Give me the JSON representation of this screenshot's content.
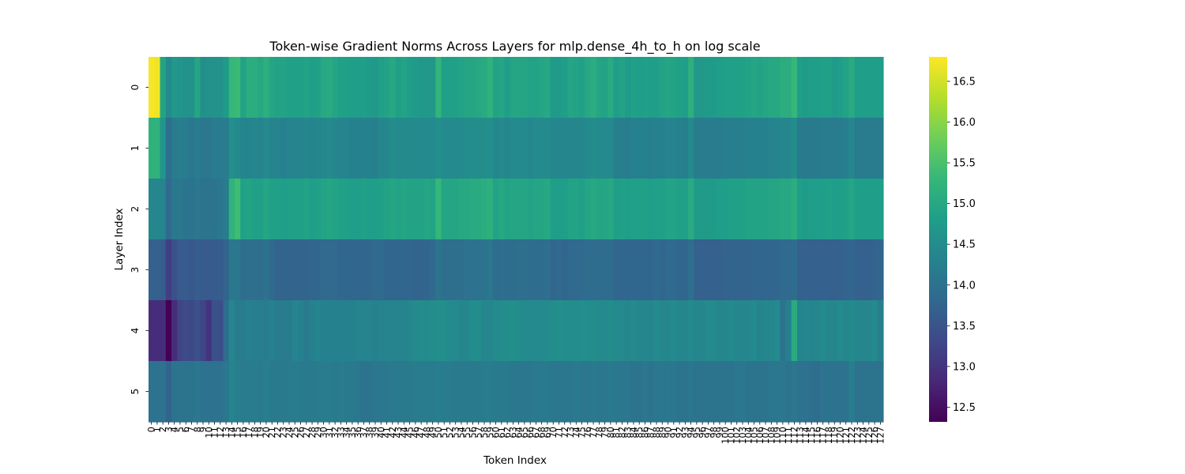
{
  "chart_data": {
    "type": "heatmap",
    "title": "Token-wise Gradient Norms Across Layers for mlp.dense_4h_to_h on log scale",
    "xlabel": "Token Index",
    "ylabel": "Layer Index",
    "x_ticks": "0-127",
    "y_categories": [
      "0",
      "1",
      "2",
      "3",
      "4",
      "5"
    ],
    "colormap": "viridis",
    "colorbar": {
      "min": 12.32,
      "max": 16.8,
      "ticks": [
        "12.5",
        "13.0",
        "13.5",
        "14.0",
        "14.5",
        "15.0",
        "15.5",
        "16.0",
        "16.5"
      ]
    },
    "rows": [
      {
        "layer": "0",
        "values": [
          16.75,
          16.7,
          14.9,
          14.45,
          14.7,
          14.65,
          14.6,
          14.6,
          14.95,
          14.55,
          14.6,
          14.6,
          14.6,
          14.75,
          15.3,
          15.35,
          14.9,
          15.1,
          15.1,
          15.0,
          15.15,
          14.95,
          14.9,
          14.9,
          14.85,
          14.85,
          14.85,
          14.9,
          14.8,
          14.85,
          15.0,
          15.05,
          14.95,
          14.85,
          14.85,
          14.8,
          14.8,
          14.8,
          14.75,
          14.7,
          14.85,
          14.9,
          15.0,
          14.85,
          14.9,
          14.8,
          14.75,
          14.7,
          14.7,
          14.7,
          15.25,
          14.85,
          14.85,
          14.85,
          14.9,
          14.95,
          14.95,
          15.0,
          15.05,
          15.2,
          14.9,
          14.95,
          14.8,
          14.95,
          14.95,
          14.95,
          14.9,
          14.9,
          14.95,
          15.0,
          14.75,
          14.75,
          14.8,
          14.95,
          14.9,
          14.85,
          15.0,
          15.1,
          14.95,
          14.9,
          15.05,
          14.8,
          14.9,
          14.75,
          14.85,
          14.8,
          14.85,
          14.8,
          14.8,
          14.9,
          14.95,
          14.9,
          14.85,
          14.8,
          15.15,
          14.7,
          14.7,
          14.75,
          14.75,
          14.8,
          14.85,
          14.85,
          14.85,
          14.85,
          14.9,
          14.95,
          14.9,
          14.95,
          15.0,
          15.0,
          15.1,
          15.1,
          15.3,
          14.8,
          14.75,
          14.8,
          14.8,
          14.85,
          14.85,
          14.75,
          14.8,
          14.9,
          15.05,
          14.8,
          14.8,
          14.8,
          14.8,
          14.8
        ]
      },
      {
        "layer": "1",
        "values": [
          15.2,
          15.2,
          14.65,
          13.95,
          14.2,
          14.25,
          14.2,
          14.1,
          14.2,
          14.1,
          14.1,
          14.2,
          14.2,
          14.2,
          14.55,
          14.45,
          14.35,
          14.35,
          14.4,
          14.35,
          14.45,
          14.35,
          14.35,
          14.3,
          14.35,
          14.35,
          14.35,
          14.4,
          14.35,
          14.4,
          14.4,
          14.45,
          14.4,
          14.35,
          14.35,
          14.3,
          14.3,
          14.3,
          14.3,
          14.25,
          14.4,
          14.4,
          14.5,
          14.45,
          14.45,
          14.45,
          14.45,
          14.45,
          14.45,
          14.45,
          14.55,
          14.45,
          14.45,
          14.45,
          14.45,
          14.5,
          14.5,
          14.5,
          14.5,
          14.55,
          14.4,
          14.45,
          14.4,
          14.45,
          14.45,
          14.45,
          14.4,
          14.45,
          14.45,
          14.45,
          14.4,
          14.4,
          14.4,
          14.4,
          14.4,
          14.4,
          14.45,
          14.5,
          14.45,
          14.45,
          14.45,
          14.25,
          14.25,
          14.2,
          14.3,
          14.3,
          14.3,
          14.25,
          14.3,
          14.3,
          14.35,
          14.35,
          14.3,
          14.25,
          14.45,
          14.2,
          14.2,
          14.2,
          14.2,
          14.2,
          14.25,
          14.25,
          14.25,
          14.25,
          14.3,
          14.3,
          14.3,
          14.3,
          14.35,
          14.35,
          14.4,
          14.4,
          14.5,
          14.15,
          14.15,
          14.15,
          14.15,
          14.2,
          14.2,
          14.2,
          14.2,
          14.25,
          14.4,
          14.2,
          14.2,
          14.2,
          14.2,
          14.2
        ]
      },
      {
        "layer": "2",
        "values": [
          14.4,
          14.4,
          14.35,
          13.85,
          14.1,
          14.1,
          14.05,
          14.05,
          14.1,
          14.05,
          14.05,
          14.05,
          14.1,
          14.2,
          15.2,
          15.4,
          14.85,
          14.9,
          14.85,
          14.85,
          14.95,
          14.85,
          14.85,
          14.8,
          14.85,
          14.85,
          14.85,
          14.9,
          14.8,
          14.85,
          14.9,
          14.95,
          14.9,
          14.85,
          14.85,
          14.8,
          14.8,
          14.85,
          14.8,
          14.8,
          14.85,
          14.9,
          14.95,
          14.9,
          14.95,
          14.9,
          14.9,
          14.9,
          14.95,
          14.9,
          15.3,
          14.95,
          14.95,
          14.95,
          15.0,
          15.0,
          15.05,
          15.05,
          15.1,
          15.15,
          14.9,
          15.0,
          14.9,
          14.95,
          14.95,
          14.95,
          14.9,
          14.95,
          14.95,
          15.0,
          14.8,
          14.8,
          14.8,
          14.9,
          14.9,
          14.85,
          14.95,
          15.0,
          14.95,
          14.95,
          15.0,
          14.8,
          14.85,
          14.8,
          14.85,
          14.85,
          14.85,
          14.8,
          14.85,
          14.85,
          14.9,
          14.9,
          14.85,
          14.85,
          15.05,
          14.75,
          14.75,
          14.75,
          14.75,
          14.8,
          14.8,
          14.85,
          14.85,
          14.85,
          14.9,
          14.9,
          14.9,
          14.9,
          14.95,
          14.95,
          15.0,
          15.0,
          15.1,
          14.8,
          14.75,
          14.8,
          14.8,
          14.8,
          14.85,
          14.8,
          14.8,
          14.85,
          14.95,
          14.8,
          14.8,
          14.8,
          14.8,
          14.8
        ]
      },
      {
        "layer": "3",
        "values": [
          13.7,
          13.7,
          13.65,
          13.15,
          13.45,
          13.6,
          13.6,
          13.55,
          13.65,
          13.6,
          13.6,
          13.6,
          13.65,
          13.75,
          14.1,
          14.1,
          13.9,
          13.95,
          13.95,
          13.9,
          14.0,
          13.85,
          13.75,
          13.75,
          13.75,
          13.75,
          13.75,
          13.75,
          13.8,
          13.8,
          13.85,
          13.85,
          13.85,
          13.8,
          13.8,
          13.8,
          13.8,
          13.8,
          13.8,
          13.85,
          13.85,
          13.8,
          13.8,
          13.8,
          13.8,
          13.8,
          13.75,
          13.75,
          13.8,
          13.85,
          14.05,
          13.95,
          13.95,
          13.95,
          13.95,
          14.0,
          14.0,
          14.0,
          14.05,
          14.1,
          13.9,
          13.95,
          13.9,
          13.9,
          13.95,
          13.95,
          13.9,
          13.9,
          13.9,
          13.95,
          13.8,
          13.85,
          13.8,
          13.85,
          13.85,
          13.85,
          13.9,
          13.9,
          13.9,
          13.9,
          13.9,
          13.8,
          13.8,
          13.8,
          13.8,
          13.8,
          13.8,
          13.8,
          13.85,
          13.8,
          13.85,
          13.85,
          13.8,
          13.8,
          13.95,
          13.7,
          13.7,
          13.7,
          13.7,
          13.7,
          13.75,
          13.75,
          13.75,
          13.75,
          13.75,
          13.8,
          13.8,
          13.8,
          13.8,
          13.8,
          13.85,
          13.85,
          13.9,
          13.7,
          13.7,
          13.7,
          13.7,
          13.7,
          13.7,
          13.7,
          13.7,
          13.75,
          13.8,
          13.7,
          13.7,
          13.7,
          13.75,
          13.8
        ]
      },
      {
        "layer": "4",
        "values": [
          12.9,
          12.9,
          12.9,
          12.32,
          12.9,
          13.25,
          13.35,
          13.3,
          13.45,
          13.25,
          13.0,
          13.45,
          13.4,
          13.9,
          14.4,
          14.2,
          14.2,
          14.3,
          14.25,
          14.25,
          14.2,
          14.3,
          14.2,
          14.2,
          14.2,
          14.35,
          14.3,
          14.15,
          14.3,
          14.35,
          14.3,
          14.3,
          14.3,
          14.3,
          14.3,
          14.3,
          14.35,
          14.35,
          14.35,
          14.3,
          14.35,
          14.35,
          14.35,
          14.35,
          14.35,
          14.4,
          14.45,
          14.5,
          14.45,
          14.5,
          14.55,
          14.55,
          14.45,
          14.45,
          14.4,
          14.4,
          14.5,
          14.5,
          14.4,
          14.4,
          14.45,
          14.5,
          14.5,
          14.55,
          14.5,
          14.45,
          14.45,
          14.45,
          14.45,
          14.45,
          14.5,
          14.55,
          14.5,
          14.5,
          14.5,
          14.55,
          14.5,
          14.5,
          14.45,
          14.45,
          14.5,
          14.45,
          14.45,
          14.4,
          14.45,
          14.4,
          14.4,
          14.4,
          14.45,
          14.4,
          14.4,
          14.45,
          14.4,
          14.4,
          14.45,
          14.4,
          14.4,
          14.45,
          14.45,
          14.4,
          14.4,
          14.45,
          14.4,
          14.4,
          14.4,
          14.45,
          14.35,
          14.4,
          14.4,
          14.45,
          14.05,
          14.25,
          15.05,
          14.35,
          14.4,
          14.35,
          14.4,
          14.45,
          14.4,
          14.4,
          14.45,
          14.4,
          14.45,
          14.4,
          14.4,
          14.4,
          14.45,
          14.25
        ]
      },
      {
        "layer": "5",
        "values": [
          14.0,
          14.0,
          14.0,
          13.75,
          14.05,
          14.05,
          14.05,
          14.05,
          14.1,
          14.0,
          14.0,
          14.0,
          14.0,
          14.1,
          14.35,
          14.25,
          14.2,
          14.2,
          14.2,
          14.15,
          14.25,
          14.15,
          14.15,
          14.15,
          14.2,
          14.2,
          14.15,
          14.15,
          14.15,
          14.2,
          14.2,
          14.2,
          14.15,
          14.2,
          14.15,
          14.15,
          14.1,
          14.05,
          14.05,
          14.1,
          14.1,
          14.1,
          14.15,
          14.15,
          14.15,
          14.15,
          14.2,
          14.2,
          14.2,
          14.2,
          14.25,
          14.2,
          14.2,
          14.15,
          14.15,
          14.15,
          14.15,
          14.15,
          14.2,
          14.2,
          14.15,
          14.15,
          14.15,
          14.1,
          14.1,
          14.1,
          14.1,
          14.15,
          14.15,
          14.15,
          14.1,
          14.1,
          14.1,
          14.1,
          14.15,
          14.1,
          14.1,
          14.15,
          14.1,
          14.1,
          14.15,
          14.1,
          14.1,
          14.1,
          14.05,
          14.05,
          14.1,
          14.05,
          14.1,
          14.1,
          14.1,
          14.1,
          14.05,
          14.05,
          14.1,
          14.05,
          14.05,
          14.05,
          14.05,
          14.05,
          14.05,
          14.05,
          14.1,
          14.1,
          14.05,
          14.05,
          14.05,
          14.05,
          14.1,
          14.1,
          14.1,
          14.05,
          14.1,
          14.0,
          14.0,
          13.95,
          13.9,
          14.0,
          14.05,
          14.0,
          14.0,
          14.0,
          14.25,
          14.0,
          14.0,
          14.05,
          14.05,
          14.0
        ]
      }
    ]
  }
}
